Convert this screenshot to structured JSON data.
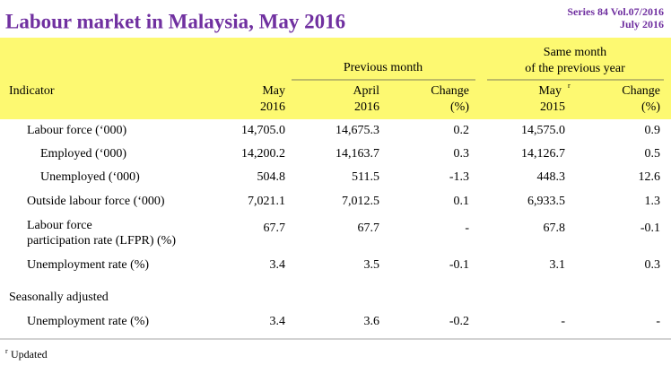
{
  "title": "Labour market in Malaysia, May 2016",
  "series": [
    "Series 84 Vol.07/2016",
    "July 2016"
  ],
  "table": {
    "groups": [
      {
        "lines": [
          "Previous month"
        ]
      },
      {
        "lines": [
          "Same month",
          "of the previous year"
        ]
      }
    ],
    "columns": [
      {
        "lines": [
          "Indicator"
        ]
      },
      {
        "lines": [
          "May",
          "2016"
        ]
      },
      {
        "lines": [
          "April",
          "2016"
        ]
      },
      {
        "lines": [
          "Change",
          "(%)"
        ]
      },
      {
        "lines": [
          "May",
          "2015"
        ],
        "sup": "r"
      },
      {
        "lines": [
          "Change",
          "(%)"
        ]
      }
    ],
    "rows": [
      {
        "label": [
          "Labour force (‘000)"
        ],
        "values": [
          "14,705.0",
          "14,675.3",
          "0.2",
          "14,575.0",
          "0.9"
        ]
      },
      {
        "label": [
          "Employed (‘000)"
        ],
        "values": [
          "14,200.2",
          "14,163.7",
          "0.3",
          "14,126.7",
          "0.5"
        ]
      },
      {
        "label": [
          "Unemployed (‘000)"
        ],
        "values": [
          "504.8",
          "511.5",
          "-1.3",
          "448.3",
          "12.6"
        ]
      },
      {
        "label": [
          "Outside labour force (‘000)"
        ],
        "values": [
          "7,021.1",
          "7,012.5",
          "0.1",
          "6,933.5",
          "1.3"
        ]
      },
      {
        "label": [
          "Labour force",
          "participation rate (LFPR) (%)"
        ],
        "values": [
          "67.7",
          "67.7",
          "-",
          "67.8",
          "-0.1"
        ]
      },
      {
        "label": [
          "Unemployment rate (%)"
        ],
        "values": [
          "3.4",
          "3.5",
          "-0.1",
          "3.1",
          "0.3"
        ]
      },
      {
        "label": [
          "Seasonally adjusted"
        ],
        "values": []
      },
      {
        "label": [
          "Unemployment rate (%)"
        ],
        "values": [
          "3.4",
          "3.6",
          "-0.2",
          "-",
          "-"
        ]
      }
    ]
  },
  "footnote": {
    "sup": "r",
    "text": "Updated"
  }
}
